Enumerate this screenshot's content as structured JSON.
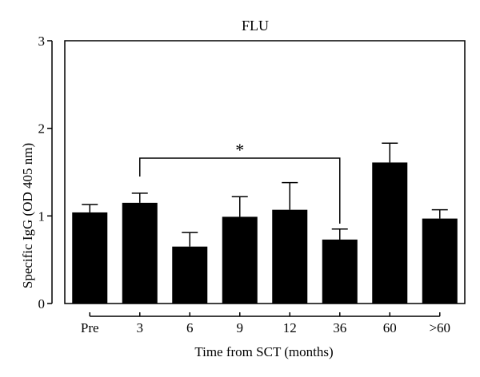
{
  "chart_data": {
    "type": "bar",
    "title": "FLU",
    "xlabel": "Time from SCT (months)",
    "ylabel": "Specific IgG (OD 405 nm)",
    "categories": [
      "Pre",
      "3",
      "6",
      "9",
      "12",
      "36",
      "60",
      ">60"
    ],
    "values": [
      1.04,
      1.15,
      0.65,
      0.99,
      1.07,
      0.73,
      1.61,
      0.97
    ],
    "errors": [
      0.09,
      0.11,
      0.16,
      0.23,
      0.31,
      0.12,
      0.22,
      0.1
    ],
    "ylim": [
      0,
      3
    ],
    "yticks": [
      0,
      1,
      2,
      3
    ],
    "error_bars": "upper",
    "bar_color": "#000000",
    "grid": false,
    "legend": "none",
    "significance": {
      "label": "*",
      "from_category": "3",
      "to_category": "36",
      "level": 1.66
    }
  }
}
